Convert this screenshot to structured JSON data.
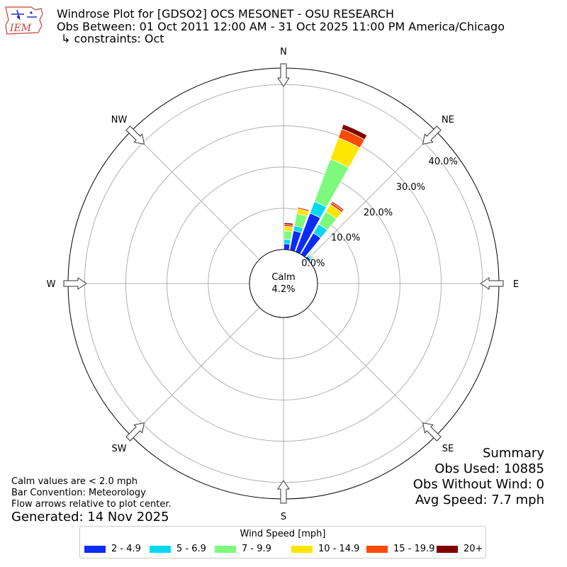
{
  "header": {
    "title": "Windrose Plot for [GDSO2] OCS MESONET - OSU RESEARCH",
    "subtitle": "Obs Between: 01 Oct 2011 12:00 AM - 31 Oct 2025 11:00 PM America/Chicago",
    "constraint": "↳ constraints: Oct",
    "logo_text": "IEM"
  },
  "notes": {
    "calm_def": "Calm values are < 2.0 mph",
    "bar_convention": "Bar Convention: Meteorology",
    "flow_arrows": "Flow arrows relative to plot center.",
    "generated": "Generated: 14 Nov 2025"
  },
  "summary": {
    "heading": "Summary",
    "obs_used": "Obs Used: 10885",
    "obs_without_wind": "Obs Without Wind: 0",
    "avg_speed": "Avg Speed: 7.7 mph"
  },
  "chart_data": {
    "type": "windrose",
    "calm_label": "Calm",
    "calm_value": "4.2%",
    "directions": [
      "N",
      "NE",
      "E",
      "SE",
      "S",
      "SW",
      "W",
      "NW"
    ],
    "radial_ticks": [
      "0.0%",
      "10.0%",
      "20.0%",
      "30.0%",
      "40.0%"
    ],
    "radial_max": 44,
    "legend_title": "Wind Speed [mph]",
    "bins": [
      {
        "label": "2 - 4.9",
        "color": "#0b2cf7"
      },
      {
        "label": "5 - 6.9",
        "color": "#08d8ef"
      },
      {
        "label": "7 - 9.9",
        "color": "#7dfa7b"
      },
      {
        "label": "10 - 14.9",
        "color": "#fce602"
      },
      {
        "label": "15 - 19.9",
        "color": "#fc4a05"
      },
      {
        "label": "20+",
        "color": "#7f0000"
      }
    ],
    "sectors": [
      {
        "direction": 5,
        "values": [
          1.4,
          1.1,
          2.0,
          1.1,
          0.5,
          0.4
        ]
      },
      {
        "direction": 15,
        "values": [
          4.8,
          1.2,
          3.0,
          1.2,
          0.4,
          0.1
        ]
      },
      {
        "direction": 25,
        "values": [
          10.0,
          3.0,
          11.0,
          5.5,
          2.3,
          1.2
        ]
      },
      {
        "direction": 35,
        "values": [
          6.0,
          2.5,
          3.5,
          2.0,
          0.6,
          0.3
        ]
      },
      {
        "direction": 45,
        "values": [
          0.5,
          0.4,
          0.4,
          0.2,
          0.2,
          0.1
        ]
      }
    ]
  }
}
